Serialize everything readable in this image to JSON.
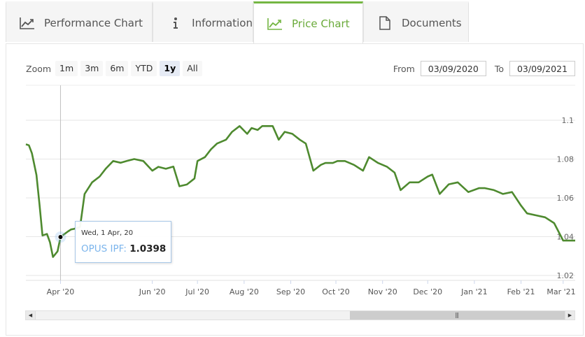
{
  "tabs": [
    {
      "label": "Performance Chart",
      "icon": "line-chart-icon"
    },
    {
      "label": "Information",
      "icon": "info-icon"
    },
    {
      "label": "Price Chart",
      "icon": "line-chart-icon",
      "active": true
    },
    {
      "label": "Documents",
      "icon": "document-icon"
    }
  ],
  "zoom": {
    "label": "Zoom",
    "buttons": [
      "1m",
      "3m",
      "6m",
      "YTD",
      "1y",
      "All"
    ],
    "selected": "1y"
  },
  "range": {
    "from_label": "From",
    "from_value": "03/09/2020",
    "to_label": "To",
    "to_value": "03/09/2021"
  },
  "tooltip": {
    "date": "Wed, 1 Apr, 20",
    "series": "OPUS IPF",
    "value": "1.0398"
  },
  "colors": {
    "line": "#4e8a2f",
    "accent": "#74b643",
    "tooltip_series": "#7cb5ec"
  },
  "chart_data": {
    "type": "line",
    "x_axis_ticks": [
      "Apr '20",
      "Jun '20",
      "Jul '20",
      "Aug '20",
      "Sep '20",
      "Oct '20",
      "Nov '20",
      "Dec '20",
      "Jan '21",
      "Feb '21",
      "Mar '21"
    ],
    "y_axis_ticks": [
      "1.02",
      "1.04",
      "1.06",
      "1.08",
      "1.1"
    ],
    "ylim": [
      1.02,
      1.1
    ],
    "series": [
      {
        "name": "OPUS IPF",
        "x": [
          "2020-03-09",
          "2020-03-11",
          "2020-03-13",
          "2020-03-16",
          "2020-03-18",
          "2020-03-20",
          "2020-03-23",
          "2020-03-25",
          "2020-03-27",
          "2020-03-30",
          "2020-04-01",
          "2020-04-03",
          "2020-04-06",
          "2020-04-08",
          "2020-04-10",
          "2020-04-14",
          "2020-04-17",
          "2020-04-22",
          "2020-04-27",
          "2020-05-01",
          "2020-05-06",
          "2020-05-11",
          "2020-05-15",
          "2020-05-20",
          "2020-05-26",
          "2020-06-01",
          "2020-06-05",
          "2020-06-10",
          "2020-06-15",
          "2020-06-19",
          "2020-06-24",
          "2020-06-29",
          "2020-07-01",
          "2020-07-06",
          "2020-07-10",
          "2020-07-14",
          "2020-07-20",
          "2020-07-24",
          "2020-07-29",
          "2020-08-03",
          "2020-08-06",
          "2020-08-10",
          "2020-08-13",
          "2020-08-17",
          "2020-08-20",
          "2020-08-24",
          "2020-08-28",
          "2020-09-02",
          "2020-09-07",
          "2020-09-11",
          "2020-09-16",
          "2020-09-21",
          "2020-09-24",
          "2020-09-29",
          "2020-10-02",
          "2020-10-07",
          "2020-10-13",
          "2020-10-19",
          "2020-10-23",
          "2020-10-29",
          "2020-11-04",
          "2020-11-09",
          "2020-11-13",
          "2020-11-19",
          "2020-11-25",
          "2020-12-01",
          "2020-12-04",
          "2020-12-09",
          "2020-12-15",
          "2020-12-21",
          "2020-12-28",
          "2021-01-04",
          "2021-01-08",
          "2021-01-14",
          "2021-01-20",
          "2021-01-26",
          "2021-02-01",
          "2021-02-05",
          "2021-02-11",
          "2021-02-17",
          "2021-02-23",
          "2021-03-01",
          "2021-03-05",
          "2021-03-09"
        ],
        "values": [
          1.0876,
          1.0871,
          1.083,
          1.0718,
          1.0568,
          1.0406,
          1.0414,
          1.0371,
          1.0295,
          1.0324,
          1.0398,
          1.041,
          1.0427,
          1.0437,
          1.044,
          1.045,
          1.062,
          1.068,
          1.071,
          1.075,
          1.079,
          1.0781,
          1.079,
          1.08,
          1.079,
          1.074,
          1.076,
          1.075,
          1.0761,
          1.066,
          1.0669,
          1.07,
          1.079,
          1.081,
          1.085,
          1.088,
          1.09,
          1.094,
          1.097,
          1.093,
          1.096,
          1.095,
          1.097,
          1.097,
          1.097,
          1.09,
          1.094,
          1.093,
          1.09,
          1.088,
          1.074,
          1.077,
          1.078,
          1.078,
          1.079,
          1.079,
          1.077,
          1.074,
          1.081,
          1.078,
          1.076,
          1.073,
          1.064,
          1.068,
          1.068,
          1.071,
          1.072,
          1.062,
          1.067,
          1.068,
          1.063,
          1.065,
          1.065,
          1.064,
          1.062,
          1.063,
          1.056,
          1.052,
          1.051,
          1.05,
          1.047,
          1.038,
          1.038,
          1.038
        ]
      }
    ],
    "hover_point": {
      "x": "2020-04-01",
      "y": 1.0398
    }
  }
}
